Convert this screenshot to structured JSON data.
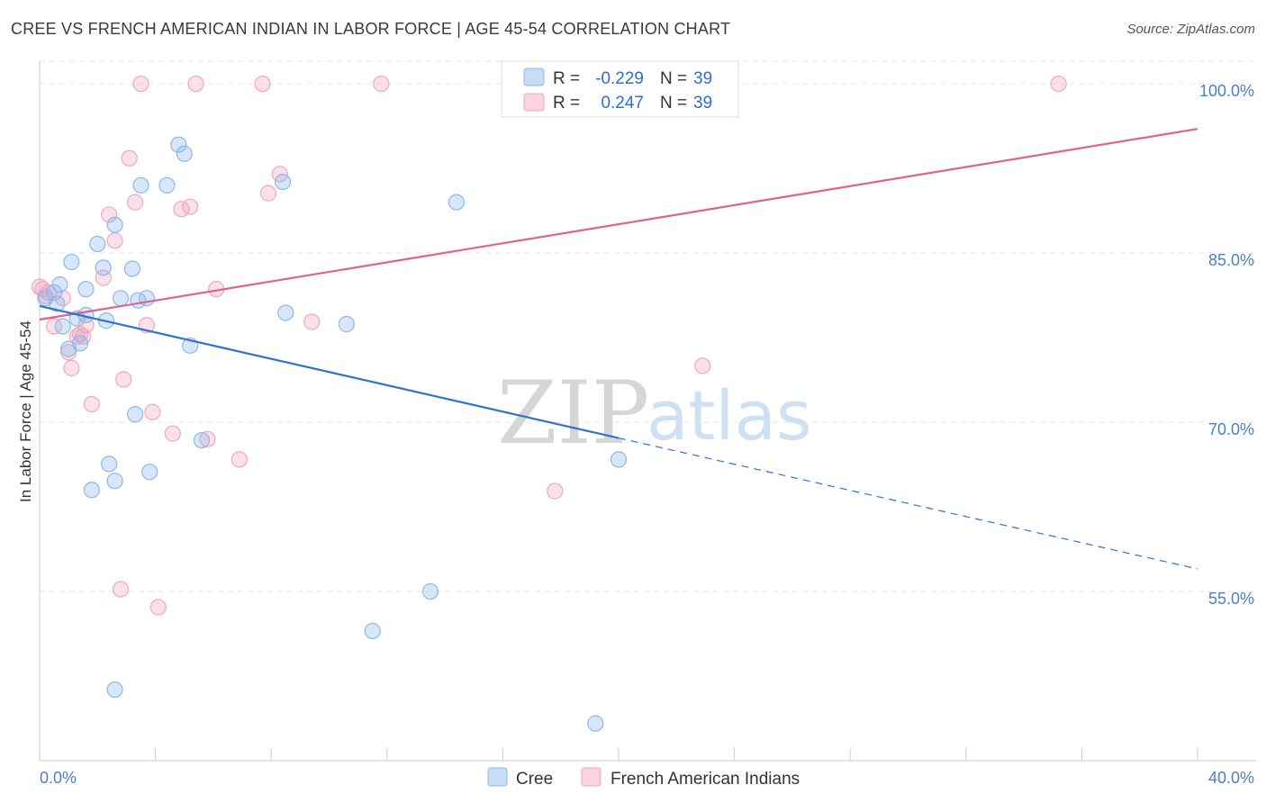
{
  "chart_data": {
    "type": "scatter",
    "title": "CREE VS FRENCH AMERICAN INDIAN IN LABOR FORCE | AGE 45-54 CORRELATION CHART",
    "source": "Source: ZipAtlas.com",
    "xlabel": "",
    "ylabel": "In Labor Force | Age 45-54",
    "xlim": [
      0,
      40
    ],
    "ylim": [
      40,
      102
    ],
    "x_tick_labels": [
      "0.0%",
      "40.0%"
    ],
    "y_ticks": [
      55,
      70,
      85,
      100
    ],
    "y_tick_labels": [
      "55.0%",
      "70.0%",
      "85.0%",
      "100.0%"
    ],
    "grid": true,
    "legend": [
      {
        "name": "Cree",
        "r_label": "R =",
        "r_value": "-0.229",
        "n_label": "N =",
        "n_value": "39",
        "color": "#8db8ea"
      },
      {
        "name": "French American Indians",
        "r_label": "R =",
        "r_value": "0.247",
        "n_label": "N =",
        "n_value": "39",
        "color": "#f2a6c0"
      }
    ],
    "watermark": {
      "zip": "ZIP",
      "atlas": "atlas"
    },
    "series": [
      {
        "name": "Cree",
        "color": "#8db8ea",
        "line_color": "#2f72d0",
        "trend": {
          "x0": 0,
          "y0": 80.3,
          "x1": 20,
          "y1": 68.6,
          "x_dash_end": 40,
          "y_dash_end": 57.0
        },
        "points": [
          [
            0.2,
            81.0
          ],
          [
            0.5,
            81.5
          ],
          [
            0.6,
            80.5
          ],
          [
            0.7,
            82.2
          ],
          [
            0.8,
            78.5
          ],
          [
            1.0,
            76.5
          ],
          [
            1.1,
            84.2
          ],
          [
            1.3,
            79.2
          ],
          [
            1.4,
            77.0
          ],
          [
            1.6,
            79.5
          ],
          [
            1.6,
            81.8
          ],
          [
            1.8,
            64.0
          ],
          [
            2.0,
            85.8
          ],
          [
            2.2,
            83.7
          ],
          [
            2.3,
            79.0
          ],
          [
            2.4,
            66.3
          ],
          [
            2.6,
            87.5
          ],
          [
            2.6,
            64.8
          ],
          [
            2.8,
            81.0
          ],
          [
            3.2,
            83.6
          ],
          [
            3.3,
            70.7
          ],
          [
            3.4,
            80.8
          ],
          [
            3.5,
            91.0
          ],
          [
            3.7,
            81.0
          ],
          [
            3.8,
            65.6
          ],
          [
            4.4,
            91.0
          ],
          [
            4.8,
            94.6
          ],
          [
            5.0,
            93.8
          ],
          [
            5.2,
            76.8
          ],
          [
            5.6,
            68.4
          ],
          [
            8.4,
            91.3
          ],
          [
            8.5,
            79.7
          ],
          [
            10.6,
            78.7
          ],
          [
            11.5,
            51.5
          ],
          [
            13.5,
            55.0
          ],
          [
            14.4,
            89.5
          ],
          [
            19.2,
            43.3
          ],
          [
            20.0,
            66.7
          ],
          [
            2.6,
            46.3
          ]
        ]
      },
      {
        "name": "French American Indians",
        "color": "#f2a6c0",
        "line_color": "#e0628e",
        "trend": {
          "x0": 0,
          "y0": 79.1,
          "x1": 40,
          "y1": 96.0
        },
        "points": [
          [
            0.1,
            81.8
          ],
          [
            0.3,
            81.5
          ],
          [
            0.5,
            78.5
          ],
          [
            0.8,
            81.0
          ],
          [
            1.0,
            76.2
          ],
          [
            1.1,
            74.8
          ],
          [
            1.3,
            77.6
          ],
          [
            1.5,
            77.6
          ],
          [
            1.6,
            78.6
          ],
          [
            1.8,
            71.6
          ],
          [
            2.2,
            82.8
          ],
          [
            2.4,
            88.4
          ],
          [
            2.6,
            86.1
          ],
          [
            2.8,
            55.2
          ],
          [
            2.9,
            73.8
          ],
          [
            3.1,
            93.4
          ],
          [
            3.3,
            89.5
          ],
          [
            3.5,
            100.0
          ],
          [
            3.7,
            78.6
          ],
          [
            3.9,
            70.9
          ],
          [
            4.1,
            53.6
          ],
          [
            4.6,
            69.0
          ],
          [
            4.9,
            88.9
          ],
          [
            5.2,
            89.1
          ],
          [
            5.4,
            100.0
          ],
          [
            5.8,
            68.5
          ],
          [
            6.1,
            81.8
          ],
          [
            6.9,
            66.7
          ],
          [
            7.7,
            100.0
          ],
          [
            7.9,
            90.3
          ],
          [
            8.3,
            92.0
          ],
          [
            9.4,
            78.9
          ],
          [
            11.8,
            100.0
          ],
          [
            17.8,
            63.9
          ],
          [
            22.9,
            75.0
          ],
          [
            35.2,
            100.0
          ],
          [
            0.0,
            82.0
          ],
          [
            0.2,
            81.2
          ],
          [
            1.4,
            77.8
          ]
        ]
      }
    ]
  }
}
